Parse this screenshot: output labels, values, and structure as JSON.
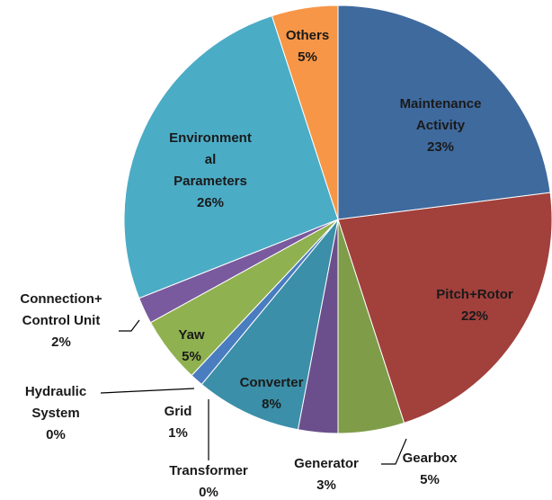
{
  "chart_data": {
    "type": "pie",
    "categories": [
      "Maintenance Activity",
      "Pitch+Rotor",
      "Gearbox",
      "Generator",
      "Converter",
      "Transformer",
      "Grid",
      "Hydraulic System",
      "Yaw",
      "Connection+ Control Unit",
      "Environmental Parameters",
      "Others"
    ],
    "values": [
      23,
      22,
      5,
      3,
      8,
      0,
      1,
      0,
      5,
      2,
      26,
      5
    ],
    "value_labels": [
      "23%",
      "22%",
      "5%",
      "3%",
      "8%",
      "0%",
      "1%",
      "0%",
      "5%",
      "2%",
      "26%",
      "5%"
    ],
    "colors": [
      "#3f6a9e",
      "#a2403c",
      "#7f9d49",
      "#6a4f8c",
      "#3b8fa8",
      "#d9823a",
      "#4a7cc0",
      "#a54441",
      "#8fb14f",
      "#7a5a9e",
      "#4bacc6",
      "#f79646"
    ]
  }
}
